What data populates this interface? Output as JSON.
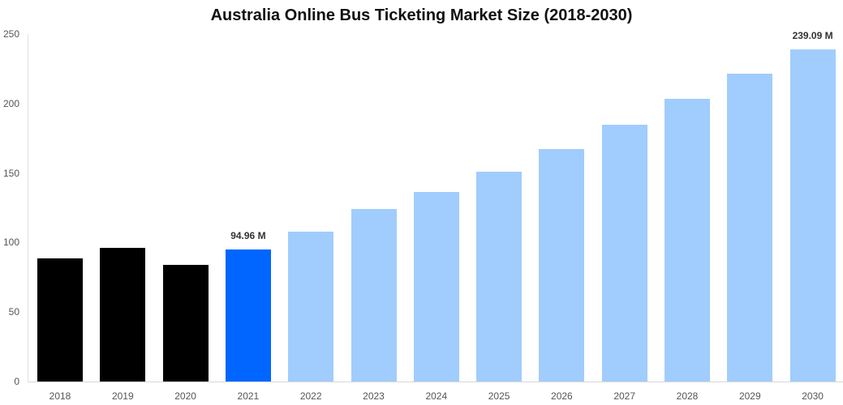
{
  "chart_data": {
    "type": "bar",
    "title": "Australia Online Bus Ticketing Market Size (2018-2030)",
    "xlabel": "",
    "ylabel": "",
    "ylim": [
      0,
      250
    ],
    "yticks": [
      0,
      50,
      100,
      150,
      200,
      250
    ],
    "grid": false,
    "legend": null,
    "categories": [
      "2018",
      "2019",
      "2020",
      "2021",
      "2022",
      "2023",
      "2024",
      "2025",
      "2026",
      "2027",
      "2028",
      "2029",
      "2030"
    ],
    "values": [
      88.6,
      96.2,
      84.0,
      94.96,
      108.0,
      124.0,
      136.5,
      151.0,
      167.0,
      184.5,
      203.5,
      221.5,
      239.09
    ],
    "colors": [
      "#000000",
      "#000000",
      "#000000",
      "#0066ff",
      "#a0cdfd",
      "#a0cdfd",
      "#a0cdfd",
      "#a0cdfd",
      "#a0cdfd",
      "#a0cdfd",
      "#a0cdfd",
      "#a0cdfd",
      "#a0cdfd"
    ],
    "annotations": [
      {
        "category": "2021",
        "text": "94.96 M"
      },
      {
        "category": "2030",
        "text": "239.09 M"
      }
    ]
  },
  "labels": {
    "title": "Australia Online Bus Ticketing Market Size (2018-2030)",
    "y": [
      "0",
      "50",
      "100",
      "150",
      "200",
      "250"
    ],
    "x": [
      "2018",
      "2019",
      "2020",
      "2021",
      "2022",
      "2023",
      "2024",
      "2025",
      "2026",
      "2027",
      "2028",
      "2029",
      "2030"
    ],
    "ann_2021": "94.96 M",
    "ann_2030": "239.09 M"
  }
}
